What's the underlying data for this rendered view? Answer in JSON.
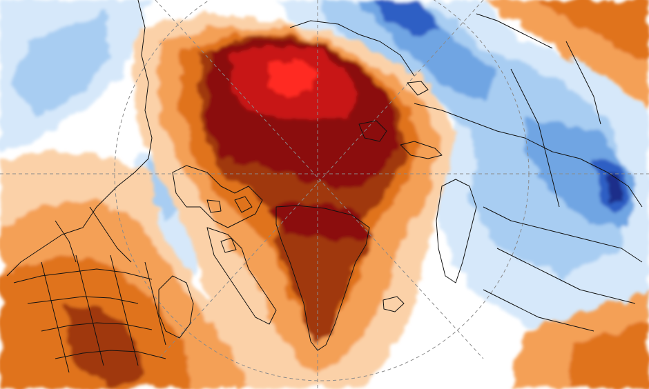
{
  "map": {
    "projection": "polar-stereographic-north",
    "field": "temperature-anomaly",
    "colors": {
      "extreme_warm": "#8b0a0a",
      "very_warm": "#c81818",
      "hot_core": "#ff2a20",
      "warm": "#a0380f",
      "moderate_warm": "#e0731f",
      "mild_warm": "#f4a057",
      "slight_warm": "#fbd1a8",
      "neutral": "#ffffff",
      "slight_cool": "#d6e8fa",
      "mild_cool": "#a8cdf2",
      "moderate_cool": "#6fa5e3",
      "cold": "#2f5fc4",
      "very_cold": "#1a2f8a",
      "coastline": "#111111",
      "gridline": "#8a8a8a"
    }
  }
}
